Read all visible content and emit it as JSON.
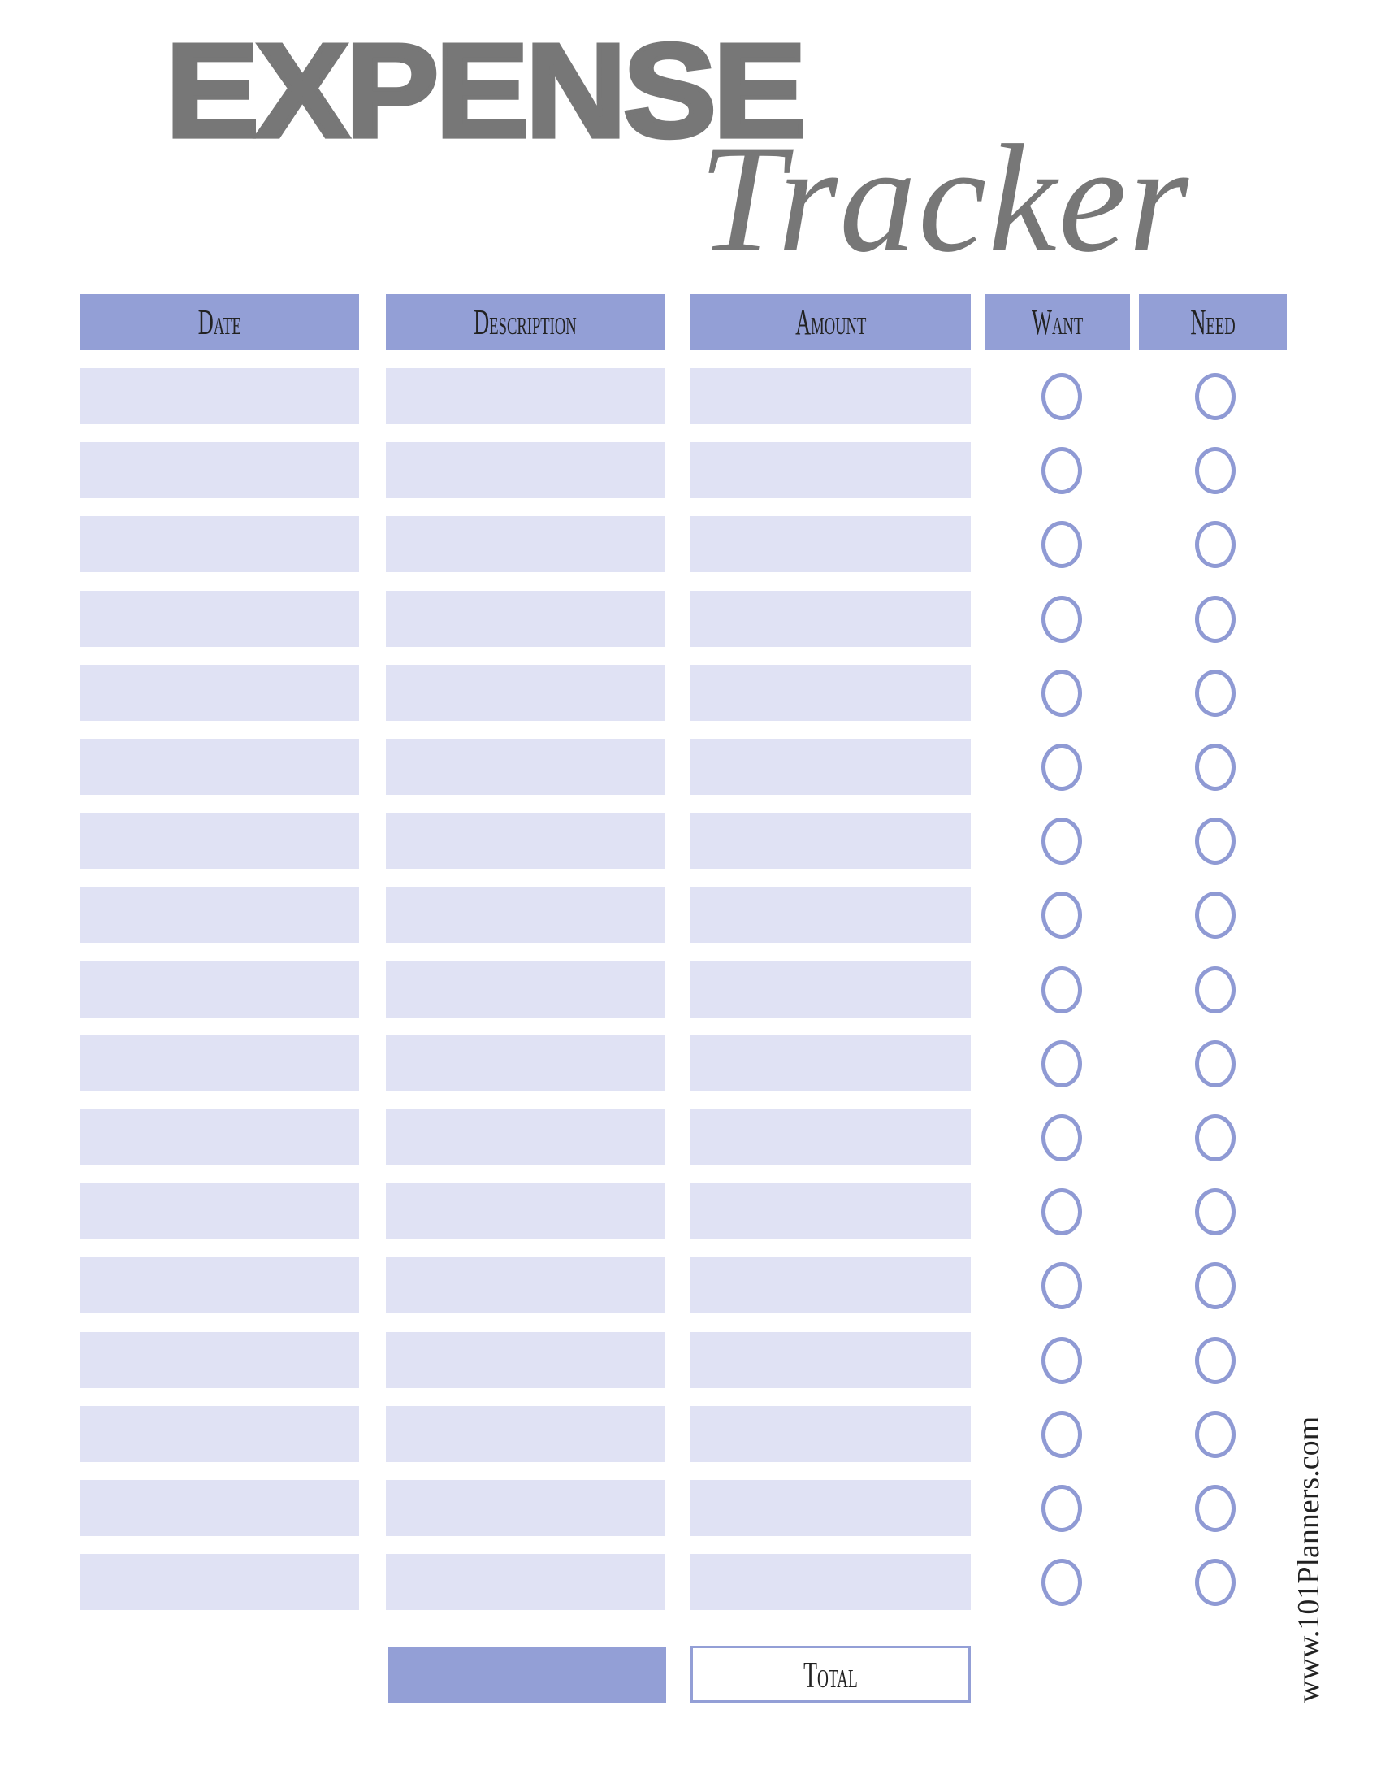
{
  "title": {
    "main": "EXPENSE",
    "script": "Tracker"
  },
  "columns": [
    {
      "key": "date",
      "label": "Date"
    },
    {
      "key": "description",
      "label": "Description"
    },
    {
      "key": "amount",
      "label": "Amount"
    },
    {
      "key": "want",
      "label": "Want"
    },
    {
      "key": "need",
      "label": "Need"
    }
  ],
  "row_count": 17,
  "total": {
    "label": "Total"
  },
  "watermark": "www.101Planners.com",
  "colors": {
    "header": "#939fd6",
    "row": "#e0e2f4",
    "circle": "#8f9ad4",
    "title": "#777777"
  }
}
